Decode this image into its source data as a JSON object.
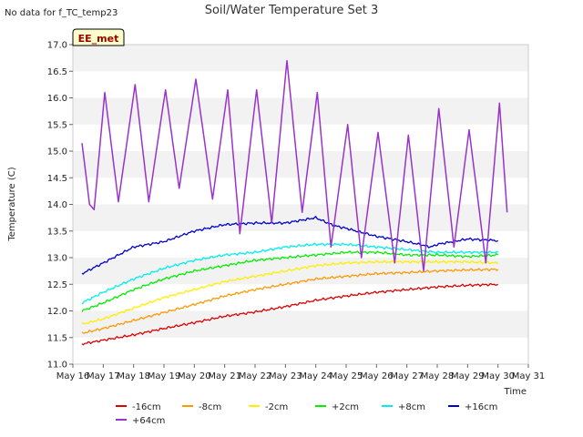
{
  "chart_data": {
    "type": "line",
    "title": "Soil/Water Temperature Set 3",
    "no_data_note": "No data for f_TC_temp23",
    "station_badge": "EE_met",
    "xlabel": "Time",
    "ylabel": "Temperature (C)",
    "ylim": [
      11.0,
      17.0
    ],
    "y_ticks": [
      "11.0",
      "11.5",
      "12.0",
      "12.5",
      "13.0",
      "13.5",
      "14.0",
      "14.5",
      "15.0",
      "15.5",
      "16.0",
      "16.5",
      "17.0"
    ],
    "xlim": [
      "May 16",
      "May 31"
    ],
    "x_ticks": [
      "May 16",
      "May 17",
      "May 18",
      "May 19",
      "May 20",
      "May 21",
      "May 22",
      "May 23",
      "May 24",
      "May 25",
      "May 26",
      "May 27",
      "May 28",
      "May 29",
      "May 30",
      "May 31"
    ],
    "grid": "alternating horizontal bands",
    "legend_position": "bottom",
    "series": [
      {
        "name": "-16cm",
        "color": "#dd0000",
        "x": [
          16.3,
          17,
          18,
          19,
          20,
          21,
          22,
          23,
          24,
          25,
          26,
          27,
          28,
          29,
          30
        ],
        "y": [
          11.38,
          11.45,
          11.55,
          11.67,
          11.78,
          11.9,
          11.98,
          12.08,
          12.2,
          12.28,
          12.35,
          12.4,
          12.45,
          12.48,
          12.5
        ]
      },
      {
        "name": "-8cm",
        "color": "#ff9900",
        "x": [
          16.3,
          17,
          18,
          19,
          20,
          21,
          22,
          23,
          24,
          25,
          26,
          27,
          28,
          29,
          30
        ],
        "y": [
          11.58,
          11.67,
          11.82,
          11.97,
          12.12,
          12.28,
          12.4,
          12.5,
          12.6,
          12.65,
          12.7,
          12.72,
          12.75,
          12.77,
          12.78
        ]
      },
      {
        "name": "-2cm",
        "color": "#ffee00",
        "x": [
          16.3,
          17,
          18,
          19,
          20,
          21,
          22,
          23,
          24,
          25,
          26,
          27,
          28,
          29,
          30
        ],
        "y": [
          11.75,
          11.85,
          12.05,
          12.25,
          12.4,
          12.55,
          12.65,
          12.75,
          12.85,
          12.9,
          12.92,
          12.92,
          12.92,
          12.92,
          12.9
        ]
      },
      {
        "name": "+2cm",
        "color": "#00ee00",
        "x": [
          16.3,
          17,
          18,
          19,
          20,
          21,
          22,
          23,
          24,
          25,
          26,
          27,
          28,
          29,
          30
        ],
        "y": [
          12.0,
          12.15,
          12.4,
          12.6,
          12.75,
          12.85,
          12.95,
          13.0,
          13.05,
          13.1,
          13.1,
          13.05,
          13.05,
          13.02,
          13.05
        ]
      },
      {
        "name": "+8cm",
        "color": "#00eeee",
        "x": [
          16.3,
          17,
          18,
          19,
          20,
          21,
          22,
          23,
          24,
          25,
          26,
          27,
          28,
          29,
          30
        ],
        "y": [
          12.15,
          12.35,
          12.6,
          12.8,
          12.95,
          13.05,
          13.1,
          13.2,
          13.25,
          13.25,
          13.2,
          13.15,
          13.1,
          13.1,
          13.1
        ]
      },
      {
        "name": "+16cm",
        "color": "#0000cc",
        "x": [
          16.3,
          17,
          17.5,
          18,
          19,
          20,
          21,
          22,
          23,
          24,
          24.6,
          25,
          26,
          27,
          27.8,
          28,
          29,
          30
        ],
        "y": [
          12.7,
          12.9,
          13.05,
          13.2,
          13.3,
          13.5,
          13.62,
          13.65,
          13.65,
          13.75,
          13.6,
          13.55,
          13.4,
          13.3,
          13.2,
          13.25,
          13.35,
          13.32
        ]
      },
      {
        "name": "+64cm",
        "color": "#9933cc",
        "x": [
          16.3,
          16.55,
          16.7,
          17.05,
          17.5,
          18.05,
          18.5,
          19.05,
          19.5,
          20.05,
          20.6,
          21.1,
          21.5,
          22.05,
          22.55,
          23.05,
          23.55,
          24.05,
          24.5,
          25.05,
          25.5,
          26.05,
          26.6,
          27.05,
          27.55,
          28.05,
          28.55,
          29.05,
          29.6,
          30.05,
          30.3
        ],
        "y": [
          15.15,
          14.0,
          13.9,
          16.1,
          14.05,
          16.25,
          14.05,
          16.15,
          14.3,
          16.35,
          14.1,
          16.15,
          13.45,
          16.15,
          13.65,
          16.7,
          13.85,
          16.1,
          13.2,
          15.5,
          13.0,
          15.35,
          12.9,
          15.3,
          12.75,
          15.8,
          13.2,
          15.4,
          12.9,
          15.9,
          13.85
        ]
      }
    ]
  }
}
